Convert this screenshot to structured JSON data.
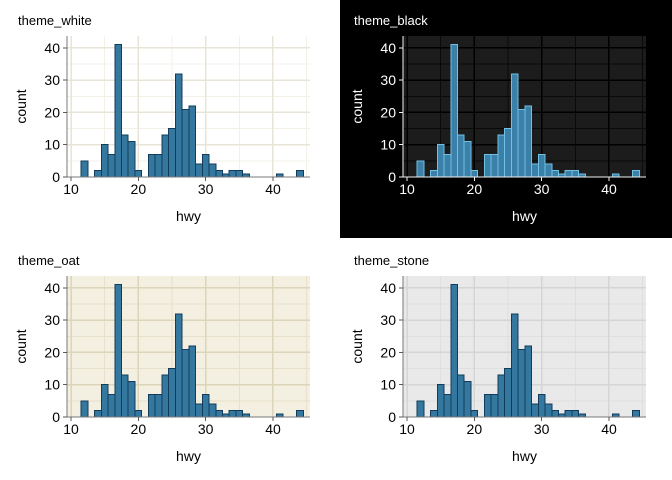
{
  "chart_data": {
    "type": "bar",
    "variant": "histogram",
    "xlabel": "hwy",
    "ylabel": "count",
    "x": [
      12,
      14,
      15,
      16,
      17,
      18,
      19,
      20,
      22,
      23,
      24,
      25,
      26,
      27,
      28,
      29,
      30,
      31,
      32,
      33,
      34,
      35,
      36,
      41,
      44
    ],
    "counts": [
      5,
      2,
      10,
      7,
      41,
      13,
      11,
      2,
      7,
      7,
      13,
      15,
      32,
      21,
      22,
      4,
      7,
      4,
      2,
      1,
      2,
      2,
      1,
      1,
      2
    ],
    "bin_width": 1,
    "x_ticks": [
      10,
      20,
      30,
      40
    ],
    "y_ticks": [
      0,
      10,
      20,
      30,
      40
    ],
    "x_minor_ticks": [
      15,
      25,
      35,
      45
    ],
    "y_minor_ticks": [
      5,
      15,
      25,
      35
    ],
    "xlim": [
      9.4,
      45.6
    ],
    "ylim": [
      0,
      43.7
    ],
    "grid": true,
    "legend": false,
    "panels": [
      {
        "title": "theme_white",
        "outer_bg": "#ffffff",
        "panel_bg": "#ffffff",
        "grid_major": "#e9e5d6",
        "grid_minor": "#f3f0e8",
        "axis": "#787878",
        "tick": "#5a5a5a",
        "text": "#000000",
        "bar_fill": "#34779f",
        "bar_stroke": "#133c5a"
      },
      {
        "title": "theme_black",
        "outer_bg": "#000000",
        "panel_bg": "#1c1c1c",
        "grid_major": "#000000",
        "grid_minor": "#0a0a0a",
        "axis": "#f2f2f2",
        "tick": "#f2f2f2",
        "text": "#ffffff",
        "bar_fill": "#3a80a8",
        "bar_stroke": "#71c1e4"
      },
      {
        "title": "theme_oat",
        "outer_bg": "#ffffff",
        "panel_bg": "#f3f0e1",
        "grid_major": "#dcd5b9",
        "grid_minor": "#e7e1cc",
        "axis": "#787878",
        "tick": "#5a5a5a",
        "text": "#000000",
        "bar_fill": "#34779f",
        "bar_stroke": "#133c5a"
      },
      {
        "title": "theme_stone",
        "outer_bg": "#ffffff",
        "panel_bg": "#e9e9e9",
        "grid_major": "#d5d5d5",
        "grid_minor": "#dfdfdf",
        "axis": "#787878",
        "tick": "#5a5a5a",
        "text": "#000000",
        "bar_fill": "#34779f",
        "bar_stroke": "#133c5a"
      }
    ]
  }
}
